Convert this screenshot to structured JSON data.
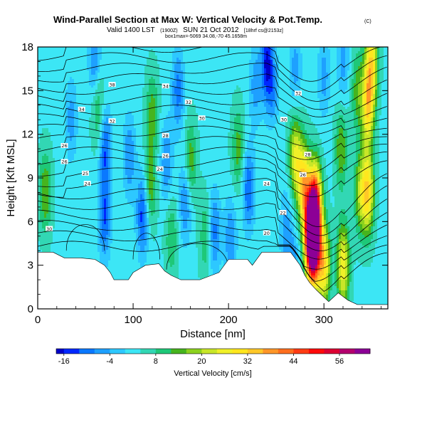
{
  "header": {
    "title": "Wind-Parallel Section at Max W: Vertical Velocity & Pot.Temp.",
    "title_mark": "(C)",
    "valid_prefix": "Valid 1400 LST",
    "valid_small1": "(1900Z)",
    "valid_date": "SUN 21 Oct 2012",
    "valid_small2": "[18hrf cs@2153z]",
    "subline": "box1max=-5069 34.08,-70 45.1658m"
  },
  "chart_data": {
    "type": "heatmap",
    "xlabel": "Distance [nm]",
    "ylabel": "Height [Kft MSL]",
    "xlim": [
      0,
      367
    ],
    "ylim": [
      0,
      18
    ],
    "xticks": [
      "0",
      "100",
      "200",
      "300"
    ],
    "xtick_values": [
      0,
      100,
      200,
      300
    ],
    "yticks": [
      "0",
      "3",
      "6",
      "9",
      "12",
      "15",
      "18"
    ],
    "ytick_values": [
      0,
      3,
      6,
      9,
      12,
      15,
      18
    ],
    "terrain": [
      [
        0,
        3.9
      ],
      [
        16,
        3.9
      ],
      [
        28,
        3.5
      ],
      [
        45,
        3.5
      ],
      [
        60,
        3.4
      ],
      [
        70,
        3.0
      ],
      [
        76,
        2.5
      ],
      [
        80,
        2.0
      ],
      [
        95,
        2.0
      ],
      [
        100,
        2.5
      ],
      [
        113,
        3.0
      ],
      [
        127,
        3.1
      ],
      [
        133,
        2.6
      ],
      [
        140,
        2.3
      ],
      [
        150,
        2.0
      ],
      [
        170,
        2.0
      ],
      [
        190,
        2.5
      ],
      [
        200,
        3.4
      ],
      [
        220,
        3.4
      ],
      [
        225,
        3.0
      ],
      [
        235,
        3.9
      ],
      [
        265,
        3.9
      ],
      [
        275,
        3.0
      ],
      [
        280,
        2.3
      ],
      [
        285,
        1.8
      ],
      [
        292,
        1.3
      ],
      [
        300,
        0.8
      ],
      [
        305,
        0.5
      ],
      [
        315,
        1.1
      ],
      [
        325,
        0.6
      ],
      [
        335,
        0.3
      ],
      [
        367,
        0.3
      ]
    ],
    "velocity_cores": [
      {
        "x": 286,
        "y": 5,
        "value": 60
      },
      {
        "x": 291,
        "y": 7.2,
        "value": 46
      },
      {
        "x": 290,
        "y": 4.5,
        "value": 48
      },
      {
        "x": 279,
        "y": 8.5,
        "value": 32
      },
      {
        "x": 270,
        "y": 10.5,
        "value": 24
      },
      {
        "x": 300,
        "y": 3,
        "value": 30
      },
      {
        "x": 320,
        "y": 3,
        "value": 28
      },
      {
        "x": 346,
        "y": 8,
        "value": 30
      },
      {
        "x": 346,
        "y": 14,
        "value": 30
      },
      {
        "x": 350,
        "y": 17,
        "value": 28
      },
      {
        "x": 318,
        "y": 11,
        "value": 16
      },
      {
        "x": 338,
        "y": 8,
        "value": 18
      },
      {
        "x": 335,
        "y": 15,
        "value": 14
      },
      {
        "x": 8,
        "y": 8,
        "value": 16
      },
      {
        "x": 63,
        "y": 14,
        "value": 14
      },
      {
        "x": 120,
        "y": 13.5,
        "value": 14
      },
      {
        "x": 118,
        "y": 8.5,
        "value": 16
      },
      {
        "x": 160,
        "y": 10,
        "value": 16
      },
      {
        "x": 210,
        "y": 11,
        "value": 14
      },
      {
        "x": 176,
        "y": 5,
        "value": 12
      },
      {
        "x": 140,
        "y": 5,
        "value": 12
      },
      {
        "x": 248,
        "y": 13,
        "value": 8
      },
      {
        "x": 240,
        "y": 17,
        "value": -16
      },
      {
        "x": 247,
        "y": 14.5,
        "value": -10
      },
      {
        "x": 228,
        "y": 15.3,
        "value": -6
      },
      {
        "x": 221,
        "y": 8.2,
        "value": -12
      },
      {
        "x": 110,
        "y": 6.5,
        "value": -14
      },
      {
        "x": 70,
        "y": 6.2,
        "value": -12
      },
      {
        "x": 185,
        "y": 5.3,
        "value": -10
      },
      {
        "x": 202,
        "y": 4.8,
        "value": -8
      },
      {
        "x": 147,
        "y": 15,
        "value": -10
      },
      {
        "x": 60,
        "y": 17,
        "value": -10
      },
      {
        "x": 71,
        "y": 11,
        "value": -12
      },
      {
        "x": 96,
        "y": 10.5,
        "value": -8
      },
      {
        "x": 135,
        "y": 10,
        "value": -8
      },
      {
        "x": 155,
        "y": 7.5,
        "value": -10
      },
      {
        "x": 35,
        "y": 13,
        "value": -6
      },
      {
        "x": 270,
        "y": 16.5,
        "value": -6
      },
      {
        "x": 300,
        "y": 16,
        "value": -6
      },
      {
        "x": 320,
        "y": 17,
        "value": -6
      },
      {
        "x": 260,
        "y": 5.5,
        "value": -6
      },
      {
        "x": 268,
        "y": 2.5,
        "value": -8
      }
    ],
    "contour_label": "Pot.Temp. (isentropes)",
    "contour_labels": [
      {
        "text": "38",
        "x": 78,
        "y": 15.4
      },
      {
        "text": "34",
        "x": 134,
        "y": 15.3
      },
      {
        "text": "32",
        "x": 158,
        "y": 14.2
      },
      {
        "text": "34",
        "x": 46,
        "y": 13.7
      },
      {
        "text": "32",
        "x": 78,
        "y": 12.9
      },
      {
        "text": "30",
        "x": 172,
        "y": 13.1
      },
      {
        "text": "28",
        "x": 134,
        "y": 11.9
      },
      {
        "text": "26",
        "x": 28,
        "y": 11.2
      },
      {
        "text": "26",
        "x": 134,
        "y": 10.5
      },
      {
        "text": "26",
        "x": 28,
        "y": 10.1
      },
      {
        "text": "25",
        "x": 50,
        "y": 9.3
      },
      {
        "text": "24",
        "x": 128,
        "y": 9.6
      },
      {
        "text": "24",
        "x": 52,
        "y": 8.6
      },
      {
        "text": "24",
        "x": 240,
        "y": 8.6
      },
      {
        "text": "30",
        "x": 12,
        "y": 5.5
      },
      {
        "text": "32",
        "x": 273,
        "y": 14.8
      },
      {
        "text": "30",
        "x": 258,
        "y": 13
      },
      {
        "text": "28",
        "x": 283,
        "y": 10.6
      },
      {
        "text": "26",
        "x": 278,
        "y": 9.2
      },
      {
        "text": "22",
        "x": 257,
        "y": 6.6
      },
      {
        "text": "20",
        "x": 240,
        "y": 5.2
      }
    ],
    "colorbar": {
      "label": "Vertical Velocity [cm/s]",
      "ticks": [
        "-16",
        "-4",
        "8",
        "20",
        "32",
        "44",
        "56"
      ],
      "tick_values": [
        -16,
        -4,
        8,
        20,
        32,
        44,
        56
      ],
      "levels": [
        -18,
        -16,
        -12,
        -8,
        -4,
        0,
        4,
        8,
        12,
        16,
        20,
        24,
        28,
        32,
        36,
        40,
        44,
        48,
        52,
        56,
        60,
        64
      ],
      "colors": [
        "#0000c8",
        "#0028ff",
        "#0a78ff",
        "#1ea0ff",
        "#2dc8ff",
        "#3ce6f5",
        "#32d7b4",
        "#1ec878",
        "#46b41e",
        "#8cd21e",
        "#c8e628",
        "#f0f028",
        "#ffe61e",
        "#ffc828",
        "#ff9628",
        "#ff6e1e",
        "#ff3c14",
        "#ff0a0a",
        "#dc0032",
        "#b4006e",
        "#8c0096"
      ]
    },
    "grid": false,
    "legend": "colorbar-bottom"
  }
}
